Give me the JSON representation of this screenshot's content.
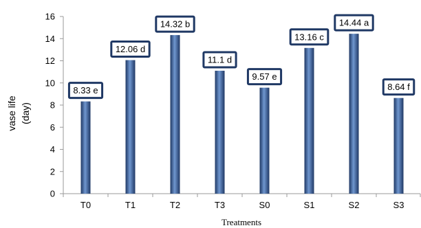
{
  "chart_data": {
    "type": "bar",
    "categories": [
      "T0",
      "T1",
      "T2",
      "T3",
      "S0",
      "S1",
      "S2",
      "S3"
    ],
    "values": [
      8.33,
      12.06,
      14.32,
      11.1,
      9.57,
      13.16,
      14.44,
      8.64
    ],
    "data_labels": [
      "8.33 e",
      "12.06 d",
      "14.32 b",
      "11.1 d",
      "9.57 e",
      "13.16 c",
      "14.44 a",
      "8.64 f"
    ],
    "ylim": [
      0,
      16
    ],
    "yticks": [
      0,
      2,
      4,
      6,
      8,
      10,
      12,
      14,
      16
    ],
    "ytick_labels": [
      "0",
      "2",
      "4",
      "6",
      "8",
      "10",
      "12",
      "14",
      "16"
    ],
    "ylabel_line1": "vase life",
    "ylabel_line2": "(day)",
    "xlabel": "Treatments",
    "grid": false,
    "legend": "none",
    "colors": {
      "bar_dark": "#1f3864",
      "bar_mid": "#3a66a8",
      "bar_light": "#6f96cf",
      "label_border": "#1f3864",
      "axis": "#9a9a9a"
    }
  }
}
